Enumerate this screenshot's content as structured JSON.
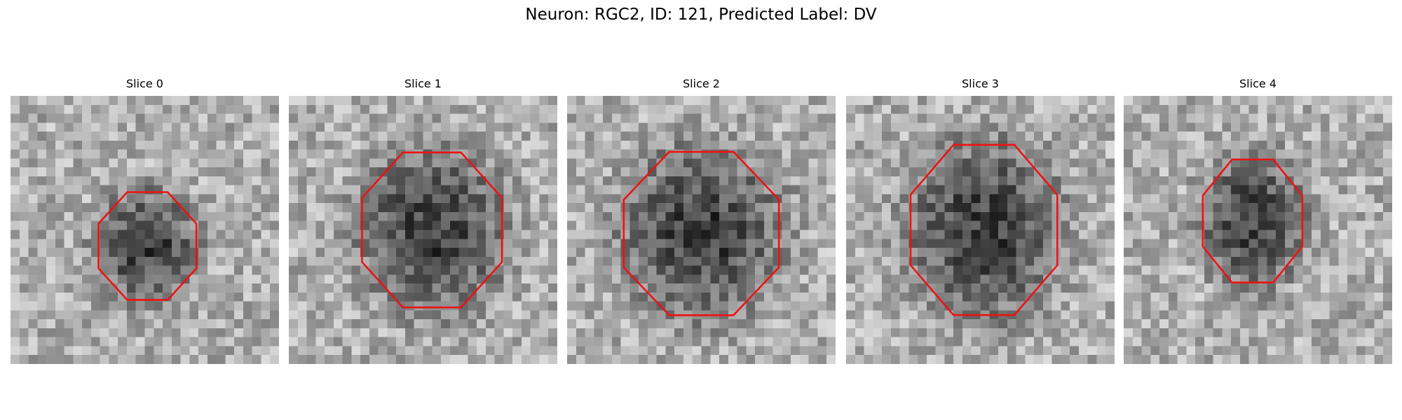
{
  "title": "Neuron: RGC2, ID: 121, Predicted Label: DV",
  "panels": [
    {
      "title": "Slice 0"
    },
    {
      "title": "Slice 1"
    },
    {
      "title": "Slice 2"
    },
    {
      "title": "Slice 3"
    },
    {
      "title": "Slice 4"
    }
  ]
}
